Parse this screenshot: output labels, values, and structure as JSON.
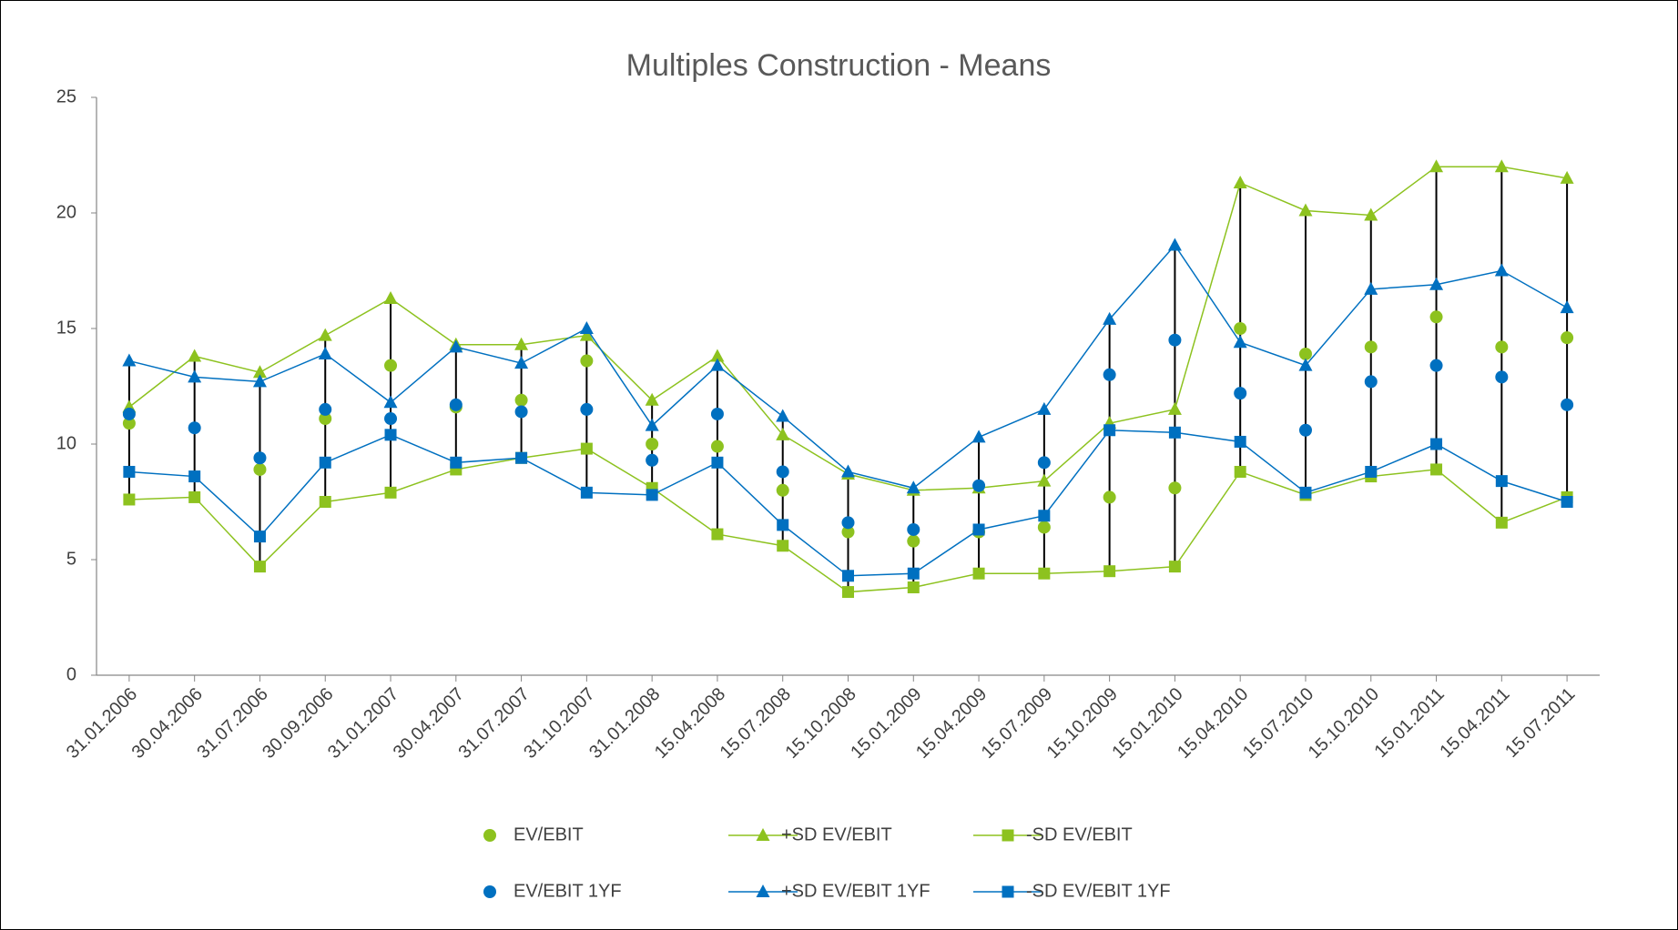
{
  "chart_data": {
    "type": "line",
    "title": "Multiples Construction - Means",
    "categories": [
      "31.01.2006",
      "30.04.2006",
      "31.07.2006",
      "30.09.2006",
      "31.01.2007",
      "30.04.2007",
      "31.07.2007",
      "31.10.2007",
      "31.01.2008",
      "15.04.2008",
      "15.07.2008",
      "15.10.2008",
      "15.01.2009",
      "15.04.2009",
      "15.07.2009",
      "15.10.2009",
      "15.01.2010",
      "15.04.2010",
      "15.07.2010",
      "15.10.2010",
      "15.01.2011",
      "15.04.2011",
      "15.07.2011"
    ],
    "ylim": [
      0,
      25
    ],
    "yticks": [
      0,
      5,
      10,
      15,
      20,
      25
    ],
    "grid": false,
    "high_low_lines": true,
    "series": [
      {
        "name": "EV/EBIT",
        "color": "#8dc21f",
        "marker": "circle",
        "line": false,
        "values": [
          10.9,
          null,
          8.9,
          11.1,
          13.4,
          11.6,
          11.9,
          13.6,
          10.0,
          9.9,
          8.0,
          6.2,
          5.8,
          6.2,
          6.4,
          7.7,
          8.1,
          15.0,
          13.9,
          14.2,
          15.5,
          14.2,
          14.6
        ]
      },
      {
        "name": "+SD EV/EBIT",
        "color": "#8dc21f",
        "marker": "triangle",
        "line": true,
        "values": [
          11.6,
          13.8,
          13.1,
          14.7,
          16.3,
          14.3,
          14.3,
          14.7,
          11.9,
          13.8,
          10.4,
          8.7,
          8.0,
          8.1,
          8.4,
          10.9,
          11.5,
          21.3,
          20.1,
          19.9,
          22.0,
          22.0,
          21.5
        ]
      },
      {
        "name": "-SD EV/EBIT",
        "color": "#8dc21f",
        "marker": "square",
        "line": true,
        "values": [
          7.6,
          7.7,
          4.7,
          7.5,
          7.9,
          8.9,
          9.4,
          9.8,
          8.1,
          6.1,
          5.6,
          3.6,
          3.8,
          4.4,
          4.4,
          4.5,
          4.7,
          8.8,
          7.8,
          8.6,
          8.9,
          6.6,
          7.7
        ]
      },
      {
        "name": "EV/EBIT 1YF",
        "color": "#0070c0",
        "marker": "circle",
        "line": false,
        "values": [
          11.3,
          10.7,
          9.4,
          11.5,
          11.1,
          11.7,
          11.4,
          11.5,
          9.3,
          11.3,
          8.8,
          6.6,
          6.3,
          8.2,
          9.2,
          13.0,
          14.5,
          12.2,
          10.6,
          12.7,
          13.4,
          12.9,
          11.7
        ]
      },
      {
        "name": "+SD EV/EBIT 1YF",
        "color": "#0070c0",
        "marker": "triangle",
        "line": true,
        "values": [
          13.6,
          12.9,
          12.7,
          13.9,
          11.8,
          14.2,
          13.5,
          15.0,
          10.8,
          13.4,
          11.2,
          8.8,
          8.1,
          10.3,
          11.5,
          15.4,
          18.6,
          14.4,
          13.4,
          16.7,
          16.9,
          17.5,
          15.9
        ]
      },
      {
        "name": "-SD EV/EBIT 1YF",
        "color": "#0070c0",
        "marker": "square",
        "line": true,
        "values": [
          8.8,
          8.6,
          6.0,
          9.2,
          10.4,
          9.2,
          9.4,
          7.9,
          7.8,
          9.2,
          6.5,
          4.3,
          4.4,
          6.3,
          6.9,
          10.6,
          10.5,
          10.1,
          7.9,
          8.8,
          10.0,
          8.4,
          7.5
        ]
      }
    ]
  }
}
